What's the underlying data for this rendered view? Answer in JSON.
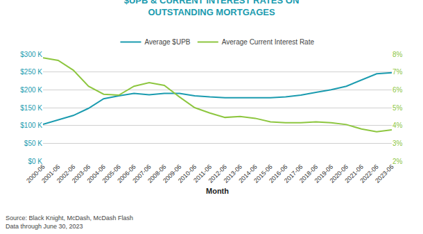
{
  "chart_data": {
    "type": "line",
    "title": "$UPB & CURRENT INTEREST RATES ON\nOUTSTANDING MORTGAGES",
    "x_label": "Month",
    "annotations": [
      "Source: Black Knight, McDash, McDash Flash\nData through June 30, 2023"
    ],
    "categories": [
      "2000-06",
      "2001-06",
      "2002-06",
      "2003-06",
      "2004-06",
      "2005-06",
      "2006-06",
      "2007-06",
      "2008-06",
      "2009-06",
      "2010-06",
      "2011-06",
      "2012-06",
      "2013-06",
      "2014-06",
      "2015-06",
      "2016-06",
      "2017-06",
      "2018-06",
      "2019-06",
      "2020-06",
      "2021-06",
      "2022-06",
      "2023-06"
    ],
    "series": [
      {
        "name": "Average $UPB",
        "color": "#1a9baf",
        "axis": "y",
        "values": [
          103000,
          115000,
          128000,
          148000,
          175000,
          183000,
          190000,
          186000,
          190000,
          190000,
          183000,
          180000,
          178000,
          178000,
          178000,
          178000,
          180000,
          185000,
          193000,
          200000,
          210000,
          228000,
          245000,
          248000
        ]
      },
      {
        "name": "Average Current Interest Rate",
        "color": "#8dc63f",
        "axis": "y2",
        "values": [
          7.8,
          7.65,
          7.1,
          6.2,
          5.75,
          5.7,
          6.2,
          6.4,
          6.25,
          5.6,
          5.0,
          4.7,
          4.45,
          4.5,
          4.4,
          4.2,
          4.15,
          4.15,
          4.2,
          4.15,
          4.05,
          3.8,
          3.65,
          3.75
        ]
      }
    ],
    "ylim": [
      0,
      300000
    ],
    "yticks": [
      {
        "value": 0,
        "label": "$0 K"
      },
      {
        "value": 50000,
        "label": "$50 K"
      },
      {
        "value": 100000,
        "label": "$100 K"
      },
      {
        "value": 150000,
        "label": "$150 K"
      },
      {
        "value": 200000,
        "label": "$200 K"
      },
      {
        "value": 250000,
        "label": "$250 K"
      },
      {
        "value": 300000,
        "label": "$300 K"
      }
    ],
    "y2lim": [
      2,
      8
    ],
    "y2ticks": [
      {
        "value": 2,
        "label": "2%"
      },
      {
        "value": 3,
        "label": "3%"
      },
      {
        "value": 4,
        "label": "4%"
      },
      {
        "value": 5,
        "label": "5%"
      },
      {
        "value": 6,
        "label": "6%"
      },
      {
        "value": 7,
        "label": "7%"
      },
      {
        "value": 8,
        "label": "8%"
      }
    ],
    "grid": true,
    "legend": "top",
    "title_color": "#1a9baf",
    "grid_color": "#d0d0d0"
  }
}
